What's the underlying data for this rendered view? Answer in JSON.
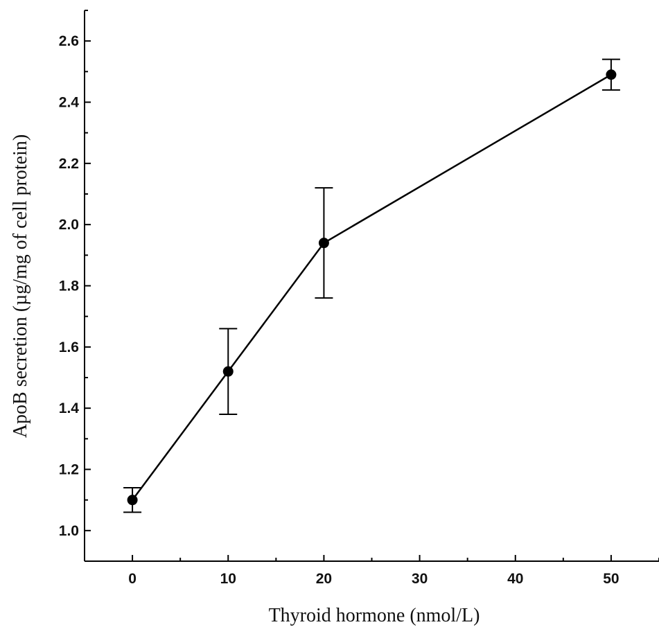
{
  "chart_data": {
    "type": "line",
    "title": "",
    "xlabel": "Thyroid hormone (nmol/L)",
    "ylabel": "ApoB secretion (µg/mg of cell protein)",
    "xlim": [
      -5,
      55
    ],
    "ylim": [
      0.9,
      2.7
    ],
    "x_ticks": [
      0,
      10,
      20,
      30,
      40,
      50
    ],
    "x_tick_labels": [
      "0",
      "10",
      "20",
      "30",
      "40",
      "50"
    ],
    "y_ticks": [
      1.0,
      1.2,
      1.4,
      1.6,
      1.8,
      2.0,
      2.2,
      2.4,
      2.6
    ],
    "y_tick_labels": [
      "1.0",
      "1.2",
      "1.4",
      "1.6",
      "1.8",
      "2.0",
      "2.2",
      "2.4",
      "2.6"
    ],
    "grid": false,
    "legend": "none",
    "color": "#000000",
    "series": [
      {
        "x": [
          0,
          10,
          20,
          50
        ],
        "y": [
          1.1,
          1.52,
          1.94,
          2.49
        ],
        "error_lower": [
          1.06,
          1.38,
          1.76,
          2.44
        ],
        "error_upper": [
          1.14,
          1.66,
          2.12,
          2.54
        ]
      }
    ]
  }
}
